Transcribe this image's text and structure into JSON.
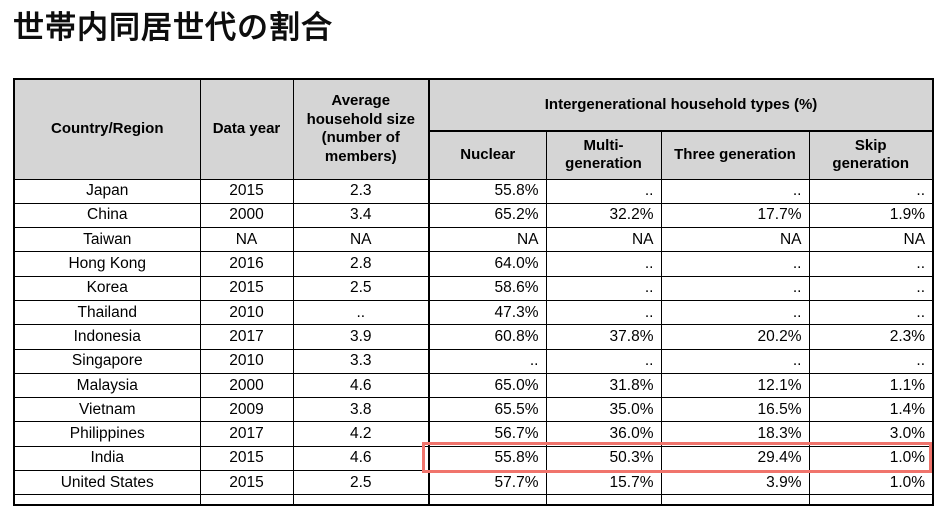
{
  "page": {
    "title": "世帯内同居世代の割合"
  },
  "colors": {
    "header_bg": "#d5d5d5",
    "table_border": "#000000",
    "highlight_red": "#f0746c"
  },
  "table": {
    "headers": {
      "country": "Country/Region",
      "data_year": "Data year",
      "avg_household_size": "Average household size (number of members)",
      "group": "Intergenerational household types (%)",
      "nuclear": "Nuclear",
      "multi_generation": "Multi-generation",
      "three_generation": "Three generation",
      "skip_generation": "Skip generation"
    },
    "highlight": {
      "row": "India",
      "columns": [
        "Nuclear",
        "Multi-generation",
        "Three generation",
        "Skip generation"
      ]
    },
    "rows": [
      {
        "country": "Japan",
        "year": "2015",
        "avg": "2.3",
        "nuclear": "55.8%",
        "multi": "..",
        "three": "..",
        "skip": ".."
      },
      {
        "country": "China",
        "year": "2000",
        "avg": "3.4",
        "nuclear": "65.2%",
        "multi": "32.2%",
        "three": "17.7%",
        "skip": "1.9%"
      },
      {
        "country": "Taiwan",
        "year": "NA",
        "avg": "NA",
        "nuclear": "NA",
        "multi": "NA",
        "three": "NA",
        "skip": "NA"
      },
      {
        "country": "Hong Kong",
        "year": "2016",
        "avg": "2.8",
        "nuclear": "64.0%",
        "multi": "..",
        "three": "..",
        "skip": ".."
      },
      {
        "country": "Korea",
        "year": "2015",
        "avg": "2.5",
        "nuclear": "58.6%",
        "multi": "..",
        "three": "..",
        "skip": ".."
      },
      {
        "country": "Thailand",
        "year": "2010",
        "avg": "..",
        "nuclear": "47.3%",
        "multi": "..",
        "three": "..",
        "skip": ".."
      },
      {
        "country": "Indonesia",
        "year": "2017",
        "avg": "3.9",
        "nuclear": "60.8%",
        "multi": "37.8%",
        "three": "20.2%",
        "skip": "2.3%"
      },
      {
        "country": "Singapore",
        "year": "2010",
        "avg": "3.3",
        "nuclear": "..",
        "multi": "..",
        "three": "..",
        "skip": ".."
      },
      {
        "country": "Malaysia",
        "year": "2000",
        "avg": "4.6",
        "nuclear": "65.0%",
        "multi": "31.8%",
        "three": "12.1%",
        "skip": "1.1%"
      },
      {
        "country": "Vietnam",
        "year": "2009",
        "avg": "3.8",
        "nuclear": "65.5%",
        "multi": "35.0%",
        "three": "16.5%",
        "skip": "1.4%"
      },
      {
        "country": "Philippines",
        "year": "2017",
        "avg": "4.2",
        "nuclear": "56.7%",
        "multi": "36.0%",
        "three": "18.3%",
        "skip": "3.0%"
      },
      {
        "country": "India",
        "year": "2015",
        "avg": "4.6",
        "nuclear": "55.8%",
        "multi": "50.3%",
        "three": "29.4%",
        "skip": "1.0%"
      },
      {
        "country": "United States",
        "year": "2015",
        "avg": "2.5",
        "nuclear": "57.7%",
        "multi": "15.7%",
        "three": "3.9%",
        "skip": "1.0%"
      }
    ]
  }
}
